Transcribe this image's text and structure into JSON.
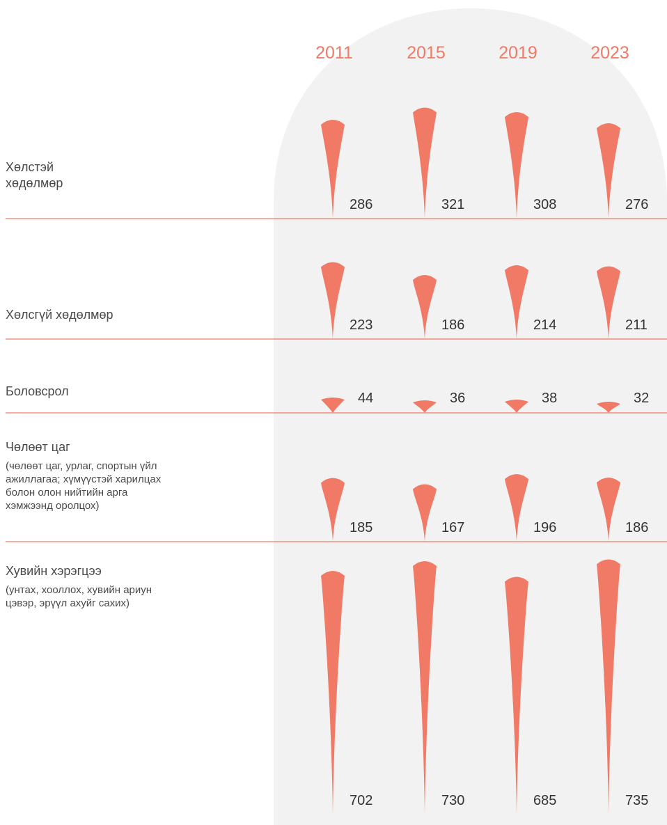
{
  "colors": {
    "accent": "#f07a66",
    "background_panel": "#f2f2f2",
    "divider": "#f07a66"
  },
  "chart_data": {
    "type": "bar",
    "categories": [
      "2011",
      "2015",
      "2019",
      "2023"
    ],
    "rows": [
      {
        "label_lines": [
          "Хөлстэй",
          "хөдөлмөр"
        ],
        "sub_lines": [],
        "values": [
          286,
          321,
          308,
          276
        ]
      },
      {
        "label_lines": [
          "Хөлсгүй хөдөлмөр"
        ],
        "sub_lines": [],
        "values": [
          223,
          186,
          214,
          211
        ]
      },
      {
        "label_lines": [
          "Боловсрол"
        ],
        "sub_lines": [],
        "values": [
          44,
          36,
          38,
          32
        ]
      },
      {
        "label_lines": [
          "Чөлөөт цаг"
        ],
        "sub_lines": [
          "(чөлөөт цаг, урлаг, спортын үйл",
          "ажиллагаа; хүмүүстэй харилцах",
          "болон олон нийтийн арга",
          "хэмжээнд оролцох)"
        ],
        "values": [
          185,
          167,
          196,
          186
        ]
      },
      {
        "label_lines": [
          "Хувийн хэрэгцээ"
        ],
        "sub_lines": [
          "(унтах, хооллох, хувийн ариун",
          "цэвэр, эрүүл ахуйг сахих)"
        ],
        "values": [
          702,
          730,
          685,
          735
        ]
      }
    ]
  }
}
